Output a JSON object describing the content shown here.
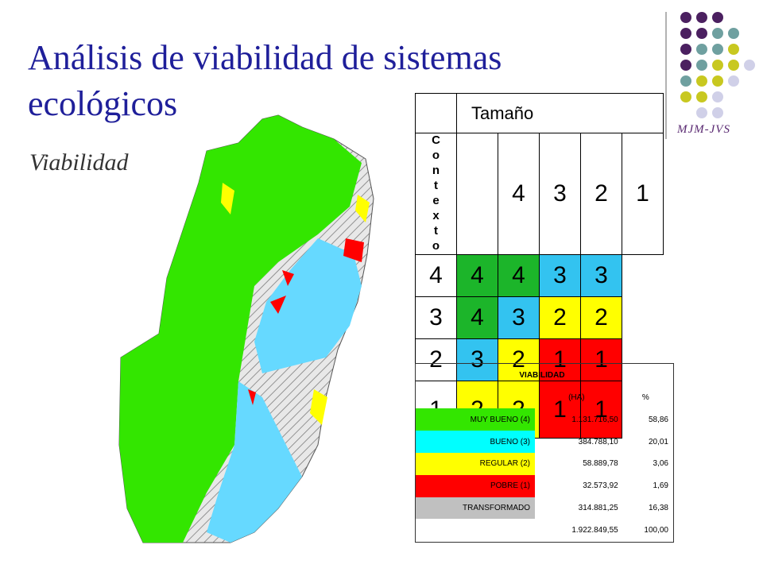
{
  "header": {
    "title": "Análisis de viabilidad de sistemas ecológicos",
    "subtitle": "Viabilidad",
    "logo": "MJM-JVS"
  },
  "matrix": {
    "column_title": "Tamaño",
    "row_title": "Contexto",
    "columns": [
      4,
      3,
      2,
      1
    ],
    "rows": [
      {
        "label": 4,
        "cells": [
          4,
          4,
          3,
          3
        ]
      },
      {
        "label": 3,
        "cells": [
          4,
          3,
          2,
          2
        ]
      },
      {
        "label": 2,
        "cells": [
          3,
          2,
          1,
          1
        ]
      },
      {
        "label": 1,
        "cells": [
          2,
          2,
          1,
          1
        ]
      }
    ]
  },
  "summary": {
    "title": "VIABILIDAD",
    "headers": [
      "(HA)",
      "%"
    ],
    "rows": [
      {
        "label": "MUY BUENO (4)",
        "ha": "1.131.716,50",
        "pct": "58,86",
        "color": "#33e600"
      },
      {
        "label": "BUENO (3)",
        "ha": "384.788,10",
        "pct": "20,01",
        "color": "#00ffff"
      },
      {
        "label": "REGULAR (2)",
        "ha": "58.889,78",
        "pct": "3,06",
        "color": "#ffff00"
      },
      {
        "label": "POBRE (1)",
        "ha": "32.573,92",
        "pct": "1,69",
        "color": "#ff0000"
      },
      {
        "label": "TRANSFORMADO",
        "ha": "314.881,25",
        "pct": "16,38",
        "color": "#c0c0c0"
      }
    ],
    "total": {
      "ha": "1.922.849,55",
      "pct": "100,00"
    }
  }
}
